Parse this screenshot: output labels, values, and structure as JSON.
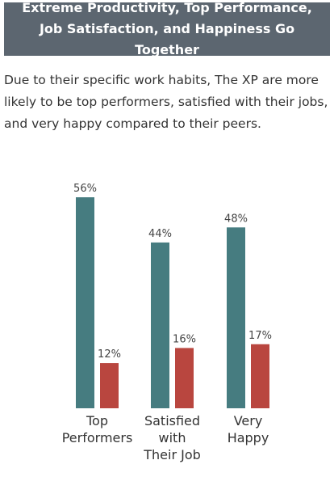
{
  "header": {
    "title": "Extreme Productivity, Top Performance, Job Satisfaction, and Happiness Go Together"
  },
  "description": "Due to their specific work habits, The XP are more likely to be top performers, satisfied with their jobs, and very happy compared to their peers.",
  "chart_data": {
    "type": "bar",
    "categories": [
      "Top Performers",
      "Satisfied with Their Job",
      "Very Happy"
    ],
    "category_lines": [
      [
        "Top",
        "Performers"
      ],
      [
        "Satisfied",
        "with",
        "Their Job"
      ],
      [
        "Very",
        "Happy"
      ]
    ],
    "series": [
      {
        "values": [
          56,
          44,
          48
        ],
        "color": "#467c80"
      },
      {
        "values": [
          12,
          16,
          17
        ],
        "color": "#b9463f"
      }
    ],
    "value_suffix": "%",
    "ylim": [
      0,
      56
    ],
    "grid": false
  }
}
